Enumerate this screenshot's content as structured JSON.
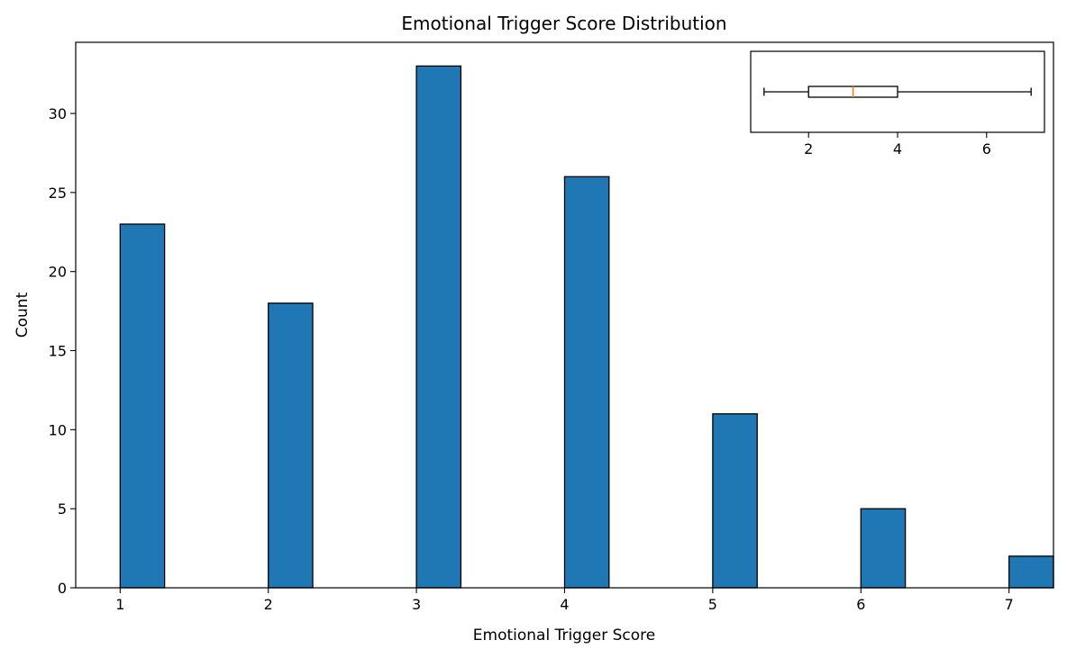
{
  "chart_data": [
    {
      "type": "bar",
      "title": "Emotional Trigger Score Distribution",
      "xlabel": "Emotional Trigger Score",
      "ylabel": "Count",
      "categories": [
        1,
        2,
        3,
        4,
        5,
        6,
        7
      ],
      "values": [
        23,
        18,
        33,
        26,
        11,
        5,
        2
      ],
      "xlim": [
        0.7,
        7.3
      ],
      "ylim": [
        0,
        34.5
      ],
      "xticks": [
        1,
        2,
        3,
        4,
        5,
        6,
        7
      ],
      "yticks": [
        0,
        5,
        10,
        15,
        20,
        25,
        30
      ],
      "bar_color": "#1f77b4",
      "edge_color": "#000000",
      "grid": false
    },
    {
      "type": "boxplot",
      "orientation": "horizontal",
      "placement": "inset-top-right",
      "whisker_low": 1,
      "q1": 2,
      "median": 3,
      "q3": 4,
      "whisker_high": 7,
      "xlim": [
        0.7,
        7.3
      ],
      "xticks": [
        2,
        4,
        6
      ],
      "median_color": "#ff7f0e",
      "grid": false
    }
  ]
}
